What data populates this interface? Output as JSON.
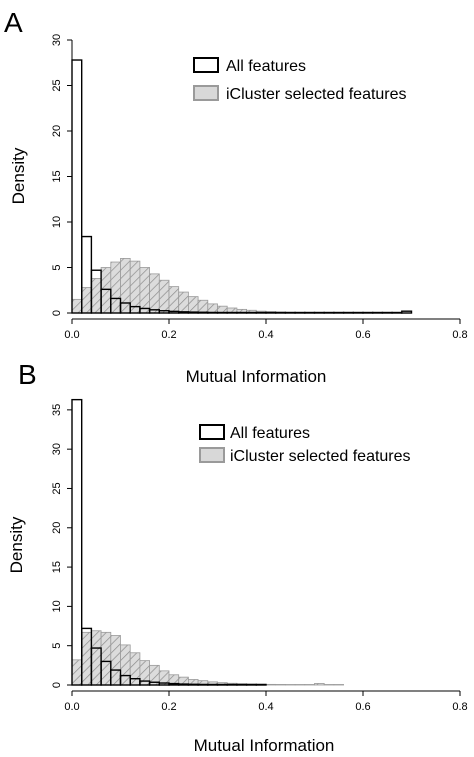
{
  "figure": {
    "panels": [
      "A",
      "B"
    ]
  },
  "colors": {
    "all_features_outline": "#000000",
    "icluster_fill": "#d8d8d8",
    "icluster_outline": "#9a9a9a",
    "hatch": "#8c8c8c",
    "axis": "#000000"
  },
  "chart_data": [
    {
      "panel": "A",
      "type": "histogram",
      "xlabel": "Mutual Information",
      "ylabel": "Density",
      "xlim": [
        0,
        0.8
      ],
      "ylim": [
        0,
        30
      ],
      "xticks": [
        "0.0",
        "0.2",
        "0.4",
        "0.6",
        "0.8"
      ],
      "yticks": [
        "0",
        "5",
        "10",
        "15",
        "20",
        "25",
        "30"
      ],
      "bin_width": 0.02,
      "legend": {
        "placement": "top-right",
        "entries": [
          "All features",
          "iCluster selected features"
        ]
      },
      "series": [
        {
          "name": "All features",
          "style": "outline",
          "bins_start": 0.0,
          "values": [
            27.8,
            8.4,
            4.7,
            2.6,
            1.6,
            1.1,
            0.7,
            0.5,
            0.35,
            0.25,
            0.18,
            0.13,
            0.1,
            0.08,
            0.06,
            0.05,
            0.04,
            0.03,
            0.03,
            0.02,
            0.02,
            0.02,
            0.01,
            0.01,
            0.01,
            0.01,
            0.01,
            0.01,
            0.01,
            0.01,
            0.01,
            0.01,
            0.01,
            0.01,
            0.2
          ]
        },
        {
          "name": "iCluster selected features",
          "style": "hatched",
          "bins_start": 0.0,
          "values": [
            1.5,
            2.8,
            3.8,
            5.0,
            5.6,
            6.0,
            5.7,
            5.0,
            4.3,
            3.6,
            2.9,
            2.3,
            1.8,
            1.4,
            1.0,
            0.75,
            0.55,
            0.4,
            0.3,
            0.2,
            0.15,
            0.1,
            0.07
          ]
        }
      ]
    },
    {
      "panel": "B",
      "type": "histogram",
      "xlabel": "Mutual Information",
      "ylabel": "Density",
      "xlim": [
        0,
        0.8
      ],
      "ylim": [
        0,
        36
      ],
      "xticks": [
        "0.0",
        "0.2",
        "0.4",
        "0.6",
        "0.8"
      ],
      "yticks": [
        "0",
        "5",
        "10",
        "15",
        "20",
        "25",
        "30",
        "35"
      ],
      "bin_width": 0.02,
      "legend": {
        "placement": "top-right",
        "entries": [
          "All features",
          "iCluster selected features"
        ]
      },
      "series": [
        {
          "name": "All features",
          "style": "outline",
          "bins_start": 0.0,
          "values": [
            36.3,
            7.2,
            4.7,
            3.0,
            1.9,
            1.2,
            0.8,
            0.5,
            0.35,
            0.25,
            0.18,
            0.12,
            0.09,
            0.07,
            0.05,
            0.04,
            0.03,
            0.02,
            0.02,
            0.01
          ]
        },
        {
          "name": "iCluster selected features",
          "style": "hatched",
          "bins_start": 0.0,
          "values": [
            3.2,
            6.7,
            6.9,
            6.7,
            6.3,
            5.1,
            4.1,
            3.1,
            2.5,
            1.8,
            1.3,
            1.0,
            0.7,
            0.55,
            0.4,
            0.3,
            0.22,
            0.16,
            0.12,
            0.1,
            0.08,
            0.07,
            0.06,
            0.05,
            0.04,
            0.2,
            0.04,
            0.03
          ]
        }
      ]
    }
  ]
}
